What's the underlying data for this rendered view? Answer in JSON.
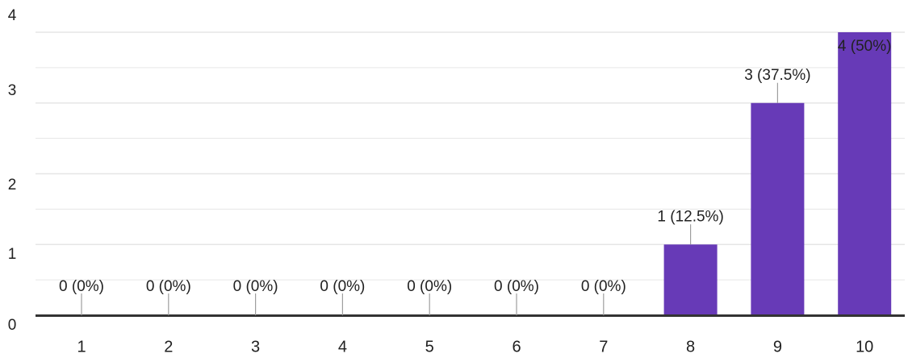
{
  "chart_data": {
    "type": "bar",
    "categories": [
      "1",
      "2",
      "3",
      "4",
      "5",
      "6",
      "7",
      "8",
      "9",
      "10"
    ],
    "values": [
      0,
      0,
      0,
      0,
      0,
      0,
      0,
      1,
      3,
      4
    ],
    "data_labels": [
      "0 (0%)",
      "0 (0%)",
      "0 (0%)",
      "0 (0%)",
      "0 (0%)",
      "0 (0%)",
      "0 (0%)",
      "1 (12.5%)",
      "3 (37.5%)",
      "4 (50%)"
    ],
    "y_ticks": [
      "0",
      "1",
      "2",
      "3",
      "4"
    ],
    "ylim": [
      0,
      4
    ],
    "grid": true,
    "colors": {
      "bar": "#673ab7",
      "grid": "#e6e6e6",
      "axis": "#333333",
      "text": "#212121",
      "leader": "#9e9e9e"
    }
  }
}
